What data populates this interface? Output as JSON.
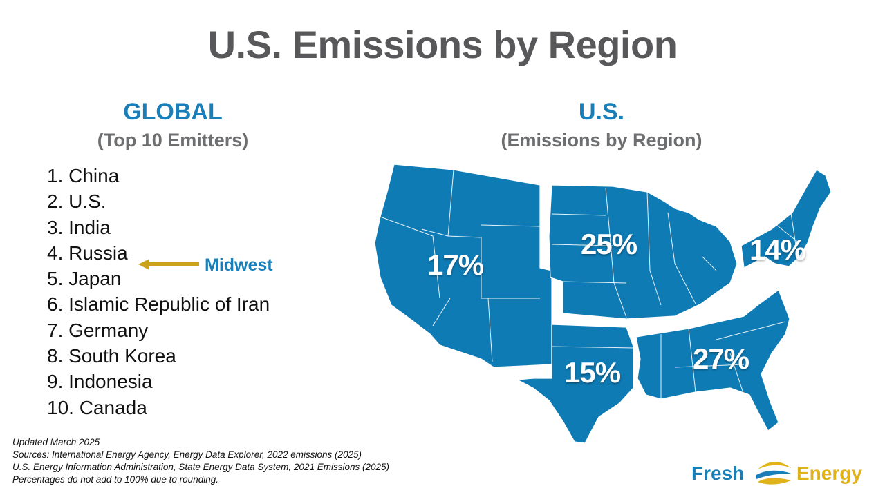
{
  "title": "U.S. Emissions by Region",
  "global": {
    "heading": "GLOBAL",
    "subheading": "(Top 10 Emitters)",
    "items": [
      "1. China",
      "2. U.S.",
      "3. India",
      "4. Russia",
      "5. Japan",
      "6. Islamic Republic of Iran",
      "7. Germany",
      "8. South Korea",
      "9. Indonesia",
      "10. Canada"
    ],
    "callout": "Midwest"
  },
  "us": {
    "heading": "U.S.",
    "subheading": "(Emissions by Region)",
    "regions": {
      "west": "17%",
      "midwest": "25%",
      "northeast": "14%",
      "south_central": "15%",
      "southeast": "27%"
    }
  },
  "footnotes": [
    "Updated March 2025",
    "Sources: International Energy Agency, Energy Data Explorer, 2022 emissions (2025)",
    "U.S. Energy Information Administration, State Energy Data System, 2021 Emissions (2025)",
    "Percentages do not add to 100% due to rounding."
  ],
  "logo": {
    "word1": "Fresh",
    "word2": "Energy"
  },
  "colors": {
    "blue": "#1a7fb8",
    "gray": "#58585a",
    "gold": "#c9a21a",
    "map": "#0f7bb5"
  },
  "icons": [
    "arrow-left-icon",
    "fresh-energy-logo-icon"
  ]
}
